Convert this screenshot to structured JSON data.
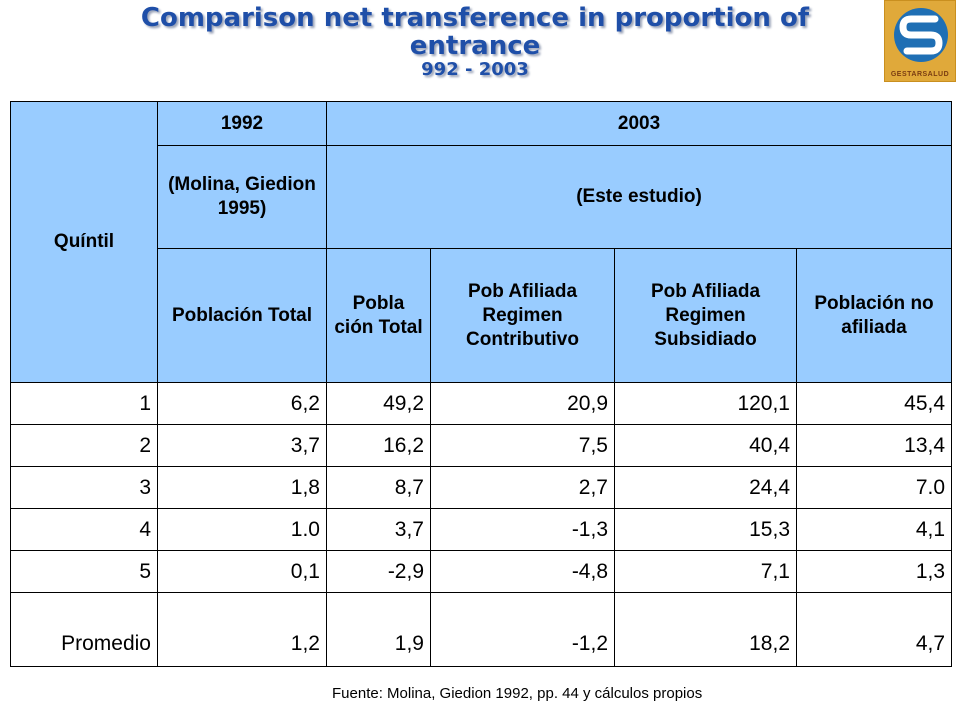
{
  "title": {
    "line1": "Comparison net transference in proportion of",
    "line2": "entrance",
    "subtitle": "992 - 2003"
  },
  "logo": {
    "text": "GESTARSALUD"
  },
  "table": {
    "quintil_header": "Quíntil",
    "year_1992": "1992",
    "year_2003": "2003",
    "source_1992": "(Molina, Giedion 1995)",
    "source_2003": "(Este estudio)",
    "col_headers": [
      "Población Total",
      "Pobla ción Total",
      "Pob Afiliada Regimen Contributivo",
      "Pob Afiliada Regimen Subsidiado",
      "Población no afiliada"
    ],
    "rows": [
      {
        "q": "1",
        "v": [
          "6,2",
          "49,2",
          "20,9",
          "120,1",
          "45,4"
        ]
      },
      {
        "q": "2",
        "v": [
          "3,7",
          "16,2",
          "7,5",
          "40,4",
          "13,4"
        ]
      },
      {
        "q": "3",
        "v": [
          "1,8",
          "8,7",
          "2,7",
          "24,4",
          "7.0"
        ]
      },
      {
        "q": "4",
        "v": [
          "1.0",
          "3,7",
          "-1,3",
          "15,3",
          "4,1"
        ]
      },
      {
        "q": "5",
        "v": [
          "0,1",
          "-2,9",
          "-4,8",
          "7,1",
          "1,3"
        ]
      },
      {
        "q": "Promedio",
        "v": [
          "1,2",
          "1,9",
          "-1,2",
          "18,2",
          "4,7"
        ]
      }
    ]
  },
  "footer": {
    "source": "Fuente: Molina, Giedion 1992, pp. 44 y cálculos propios"
  }
}
